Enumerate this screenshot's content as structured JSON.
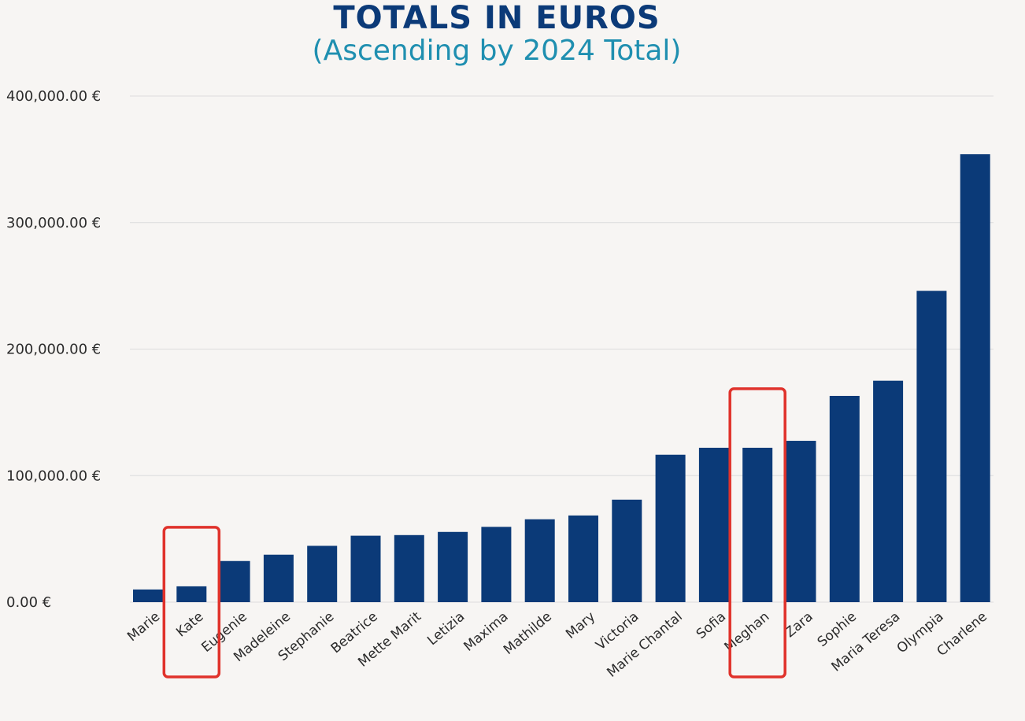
{
  "chart_data": {
    "type": "bar",
    "title": "TOTALS IN EUROS",
    "subtitle": "(Ascending by 2024 Total)",
    "categories": [
      "Marie",
      "Kate",
      "Eugenie",
      "Madeleine",
      "Stephanie",
      "Beatrice",
      "Mette Marit",
      "Letizia",
      "Maxima",
      "Mathilde",
      "Mary",
      "Victoria",
      "Marie Chantal",
      "Sofia",
      "Meghan",
      "Zara",
      "Sophie",
      "Maria Teresa",
      "Olympia",
      "Charlene"
    ],
    "values": [
      10000,
      12500,
      32500,
      37500,
      44500,
      52500,
      53000,
      55500,
      59500,
      65500,
      68500,
      81000,
      116500,
      122000,
      122000,
      127500,
      163000,
      175000,
      246000,
      354000
    ],
    "ylim": [
      0,
      400000
    ],
    "yticks": [
      0,
      100000,
      200000,
      300000,
      400000
    ],
    "ytick_labels": [
      "0.00 €",
      "100,000.00 €",
      "200,000.00 €",
      "300,000.00 €",
      "400,000.00 €"
    ],
    "xlabel": "",
    "ylabel": "",
    "grid": true,
    "legend": false,
    "highlighted": [
      "Kate",
      "Meghan"
    ],
    "colors": {
      "bar": "#0b3a78",
      "grid": "#dcdcdc",
      "highlight": "#e0322b",
      "title": "#0b3a78",
      "subtitle": "#1f8fb0"
    }
  }
}
